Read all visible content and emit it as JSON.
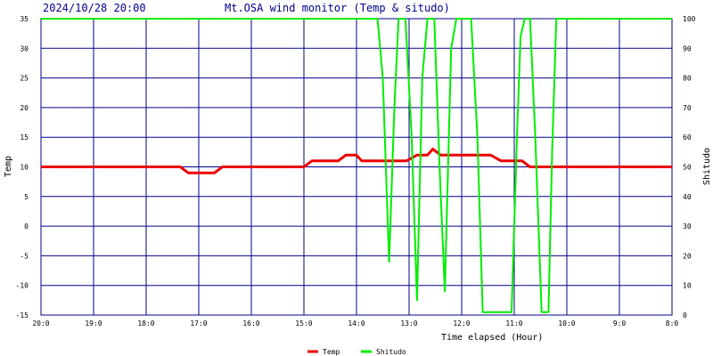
{
  "header": {
    "datetime": "2024/10/28 20:00",
    "title": "Mt.OSA wind monitor (Temp & situdo)"
  },
  "chart_data": {
    "type": "line",
    "title": "Mt.OSA wind monitor (Temp & situdo)",
    "timestamp": "2024/10/28 20:00",
    "xlabel": "Time elapsed (Hour)",
    "ylabel_left": "Temp",
    "ylabel_right": "Shitudo",
    "xlim": [
      0,
      12
    ],
    "ylim_left": [
      -15,
      35
    ],
    "ylim_right": [
      0,
      100
    ],
    "grid": true,
    "legend_position": "bottom-center",
    "x_ticks": [
      "20:0",
      "19:0",
      "18:0",
      "17:0",
      "16:0",
      "15:0",
      "14:0",
      "13:0",
      "12:0",
      "11:0",
      "10:0",
      "9:0",
      "8:0"
    ],
    "y_left_ticks": [
      -15,
      -10,
      -5,
      0,
      5,
      10,
      15,
      20,
      25,
      30,
      35
    ],
    "y_right_ticks": [
      0,
      10,
      20,
      30,
      40,
      50,
      60,
      70,
      80,
      90,
      100
    ],
    "colors": {
      "temp": "#ee0000",
      "shitudo": "#00ee00",
      "grid": "#00008b",
      "axis_text": "#000000",
      "header_text": "#00008b"
    },
    "series": [
      {
        "name": "Temp",
        "axis": "left",
        "points": [
          [
            0,
            10
          ],
          [
            2.65,
            10
          ],
          [
            2.8,
            9
          ],
          [
            3.3,
            9
          ],
          [
            3.45,
            10
          ],
          [
            5.0,
            10
          ],
          [
            5.15,
            11
          ],
          [
            5.65,
            11
          ],
          [
            5.8,
            12
          ],
          [
            6.0,
            12
          ],
          [
            6.1,
            11
          ],
          [
            6.95,
            11
          ],
          [
            7.15,
            12
          ],
          [
            7.35,
            12
          ],
          [
            7.45,
            13
          ],
          [
            7.6,
            12
          ],
          [
            8.55,
            12
          ],
          [
            8.75,
            11
          ],
          [
            9.15,
            11
          ],
          [
            9.3,
            10
          ],
          [
            12.0,
            10
          ]
        ]
      },
      {
        "name": "Shitudo",
        "axis": "right",
        "points": [
          [
            0,
            100
          ],
          [
            6.4,
            100
          ],
          [
            6.5,
            80
          ],
          [
            6.62,
            18
          ],
          [
            6.72,
            70
          ],
          [
            6.8,
            100
          ],
          [
            6.93,
            100
          ],
          [
            7.05,
            60
          ],
          [
            7.15,
            5
          ],
          [
            7.25,
            80
          ],
          [
            7.35,
            100
          ],
          [
            7.48,
            100
          ],
          [
            7.58,
            50
          ],
          [
            7.68,
            8
          ],
          [
            7.8,
            90
          ],
          [
            7.9,
            100
          ],
          [
            8.18,
            100
          ],
          [
            8.3,
            60
          ],
          [
            8.4,
            1
          ],
          [
            8.95,
            1
          ],
          [
            9.05,
            60
          ],
          [
            9.12,
            94
          ],
          [
            9.2,
            100
          ],
          [
            9.3,
            100
          ],
          [
            9.4,
            60
          ],
          [
            9.52,
            1
          ],
          [
            9.65,
            1
          ],
          [
            9.72,
            55
          ],
          [
            9.8,
            100
          ],
          [
            12.0,
            100
          ]
        ]
      }
    ]
  }
}
